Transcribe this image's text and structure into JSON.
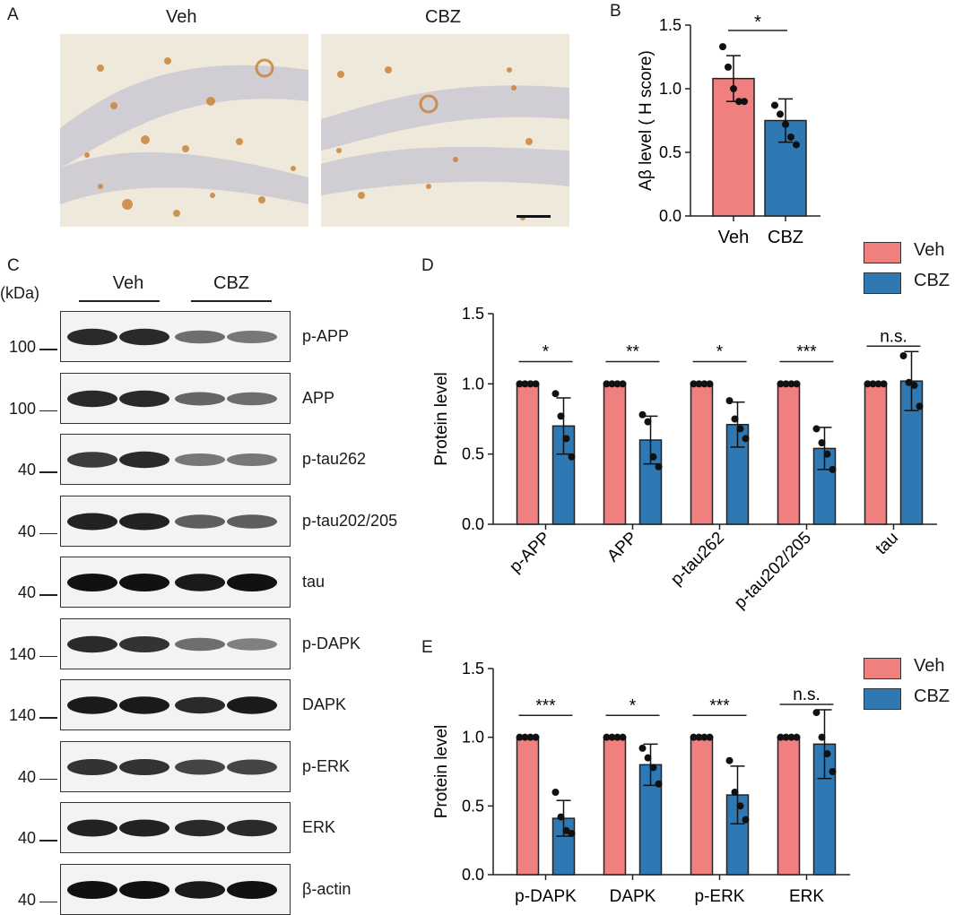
{
  "panelA": {
    "letter": "A",
    "left_label": "Veh",
    "right_label": "CBZ"
  },
  "panelB": {
    "letter": "B"
  },
  "panelC": {
    "letter": "C",
    "kda_unit": "(kDa)",
    "group1": "Veh",
    "group2": "CBZ",
    "rows": [
      {
        "label": "p-APP",
        "kda": "100",
        "intensity": [
          0.85,
          0.85,
          0.45,
          0.4
        ]
      },
      {
        "label": "APP",
        "kda": "100",
        "intensity": [
          0.85,
          0.85,
          0.5,
          0.45
        ]
      },
      {
        "label": "p-tau262",
        "kda": "40",
        "intensity": [
          0.75,
          0.85,
          0.4,
          0.4
        ]
      },
      {
        "label": "p-tau202/205",
        "kda": "40",
        "intensity": [
          0.9,
          0.9,
          0.55,
          0.55
        ]
      },
      {
        "label": "tau",
        "kda": "40",
        "intensity": [
          1.0,
          1.0,
          0.95,
          1.0
        ]
      },
      {
        "label": "p-DAPK",
        "kda": "140",
        "intensity": [
          0.85,
          0.8,
          0.45,
          0.35
        ]
      },
      {
        "label": "DAPK",
        "kda": "140",
        "intensity": [
          0.95,
          0.95,
          0.85,
          0.95
        ]
      },
      {
        "label": "p-ERK",
        "kda": "40",
        "intensity": [
          0.8,
          0.8,
          0.7,
          0.7
        ]
      },
      {
        "label": "ERK",
        "kda": "40",
        "intensity": [
          0.9,
          0.9,
          0.85,
          0.85
        ]
      },
      {
        "label": "β-actin",
        "kda": "40",
        "intensity": [
          1.0,
          1.0,
          0.95,
          1.0
        ]
      }
    ]
  },
  "panelD": {
    "letter": "D"
  },
  "panelE": {
    "letter": "E"
  },
  "legend": {
    "veh": "Veh",
    "cbz": "CBZ",
    "veh_color": "#f08080",
    "cbz_color": "#2e78b4"
  },
  "chart_data": [
    {
      "id": "B",
      "type": "bar",
      "categories": [
        "Veh",
        "CBZ"
      ],
      "values": [
        1.08,
        0.75
      ],
      "errors": [
        0.18,
        0.17
      ],
      "points": [
        [
          1.33,
          1.17,
          1.0,
          0.9,
          0.9
        ],
        [
          0.87,
          0.8,
          0.72,
          0.62,
          0.56
        ]
      ],
      "colors": [
        "#f08080",
        "#2e78b4"
      ],
      "ylabel": "Aβ level ( H score)",
      "ylim": [
        0,
        1.5
      ],
      "yticks": [
        "0.0",
        "0.5",
        "1.0",
        "1.5"
      ],
      "significance": [
        {
          "text": "*"
        }
      ]
    },
    {
      "id": "D",
      "type": "bar",
      "categories": [
        "p-APP",
        "APP",
        "p-tau262",
        "p-tau202/205",
        "tau"
      ],
      "series": [
        {
          "name": "Veh",
          "values": [
            1,
            1,
            1,
            1,
            1
          ],
          "errors": [
            0,
            0,
            0,
            0,
            0
          ],
          "points": [
            [
              1,
              1,
              1,
              1
            ],
            [
              1,
              1,
              1,
              1
            ],
            [
              1,
              1,
              1,
              1
            ],
            [
              1,
              1,
              1,
              1
            ],
            [
              1,
              1,
              1,
              1
            ]
          ]
        },
        {
          "name": "CBZ",
          "values": [
            0.7,
            0.6,
            0.71,
            0.54,
            1.02
          ],
          "errors": [
            0.2,
            0.17,
            0.16,
            0.15,
            0.21
          ],
          "points": [
            [
              0.93,
              0.77,
              0.61,
              0.48
            ],
            [
              0.78,
              0.73,
              0.48,
              0.41
            ],
            [
              0.88,
              0.75,
              0.68,
              0.61
            ],
            [
              0.68,
              0.58,
              0.5,
              0.39
            ],
            [
              1.2,
              1.01,
              0.99,
              0.84
            ]
          ]
        }
      ],
      "ylabel": "Protein level",
      "ylim": [
        0,
        1.5
      ],
      "yticks": [
        "0.0",
        "0.5",
        "1.0",
        "1.5"
      ],
      "significance": [
        "*",
        "**",
        "*",
        "***",
        "n.s."
      ]
    },
    {
      "id": "E",
      "type": "bar",
      "categories": [
        "p-DAPK",
        "DAPK",
        "p-ERK",
        "ERK"
      ],
      "series": [
        {
          "name": "Veh",
          "values": [
            1,
            1,
            1,
            1
          ],
          "errors": [
            0,
            0,
            0,
            0
          ],
          "points": [
            [
              1,
              1,
              1,
              1
            ],
            [
              1,
              1,
              1,
              1
            ],
            [
              1,
              1,
              1,
              1
            ],
            [
              1,
              1,
              1,
              1
            ]
          ]
        },
        {
          "name": "CBZ",
          "values": [
            0.41,
            0.8,
            0.58,
            0.95
          ],
          "errors": [
            0.13,
            0.15,
            0.21,
            0.25
          ],
          "points": [
            [
              0.6,
              0.42,
              0.32,
              0.3
            ],
            [
              0.92,
              0.85,
              0.78,
              0.66
            ],
            [
              0.83,
              0.6,
              0.5,
              0.4
            ],
            [
              1.18,
              1.0,
              0.88,
              0.75
            ]
          ]
        }
      ],
      "ylabel": "Protein level",
      "ylim": [
        0,
        1.5
      ],
      "yticks": [
        "0.0",
        "0.5",
        "1.0",
        "1.5"
      ],
      "significance": [
        "***",
        "*",
        "***",
        "n.s."
      ]
    }
  ]
}
